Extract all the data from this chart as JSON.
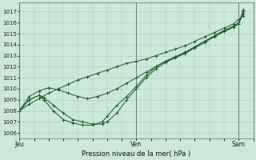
{
  "title": "Pression niveau de la mer( hPa )",
  "bg_color": "#cce8d8",
  "grid_color": "#aaccb8",
  "line_color": "#1a5c28",
  "ylim": [
    1005.5,
    1017.8
  ],
  "yticks": [
    1006,
    1007,
    1008,
    1009,
    1010,
    1011,
    1012,
    1013,
    1014,
    1015,
    1016,
    1017
  ],
  "xlim": [
    0,
    96
  ],
  "xtick_positions": [
    0,
    48,
    90
  ],
  "xtick_labels": [
    "Jeu",
    "Ven",
    "Sam"
  ],
  "series": [
    [
      0,
      1008.0,
      4,
      1008.6,
      8,
      1009.1,
      12,
      1009.6,
      16,
      1010.0,
      20,
      1010.4,
      24,
      1010.8,
      28,
      1011.1,
      32,
      1011.4,
      36,
      1011.7,
      40,
      1012.0,
      44,
      1012.3,
      48,
      1012.5,
      52,
      1012.7,
      56,
      1013.0,
      60,
      1013.3,
      64,
      1013.6,
      68,
      1013.9,
      72,
      1014.3,
      76,
      1014.7,
      80,
      1015.1,
      84,
      1015.5,
      88,
      1015.9,
      90,
      1016.3,
      92,
      1016.6
    ],
    [
      0,
      1008.0,
      4,
      1009.0,
      8,
      1009.4,
      10,
      1009.2,
      14,
      1008.5,
      18,
      1007.8,
      22,
      1007.2,
      26,
      1007.0,
      30,
      1006.8,
      34,
      1006.8,
      36,
      1007.0,
      40,
      1007.8,
      44,
      1009.0,
      48,
      1010.0,
      52,
      1011.0,
      56,
      1011.8,
      60,
      1012.4,
      64,
      1012.8,
      68,
      1013.2,
      72,
      1013.7,
      76,
      1014.2,
      80,
      1014.7,
      84,
      1015.2,
      88,
      1015.6,
      90,
      1015.9,
      92,
      1017.2
    ],
    [
      0,
      1008.0,
      4,
      1009.0,
      8,
      1009.4,
      10,
      1009.0,
      14,
      1008.0,
      18,
      1007.2,
      22,
      1006.9,
      26,
      1006.7,
      30,
      1006.7,
      34,
      1007.0,
      36,
      1007.5,
      40,
      1008.5,
      44,
      1009.3,
      48,
      1010.2,
      52,
      1011.2,
      56,
      1012.0,
      60,
      1012.5,
      64,
      1012.9,
      68,
      1013.3,
      72,
      1013.8,
      76,
      1014.3,
      80,
      1014.8,
      84,
      1015.2,
      88,
      1015.6,
      90,
      1015.9,
      92,
      1017.0
    ],
    [
      0,
      1008.0,
      4,
      1009.3,
      8,
      1009.8,
      12,
      1010.1,
      16,
      1009.9,
      20,
      1009.6,
      24,
      1009.3,
      28,
      1009.1,
      32,
      1009.3,
      36,
      1009.6,
      40,
      1010.0,
      44,
      1010.5,
      48,
      1011.0,
      52,
      1011.5,
      56,
      1012.0,
      60,
      1012.5,
      64,
      1012.9,
      68,
      1013.3,
      72,
      1013.8,
      76,
      1014.3,
      80,
      1014.8,
      84,
      1015.3,
      88,
      1015.7,
      90,
      1016.0,
      92,
      1016.8
    ]
  ]
}
